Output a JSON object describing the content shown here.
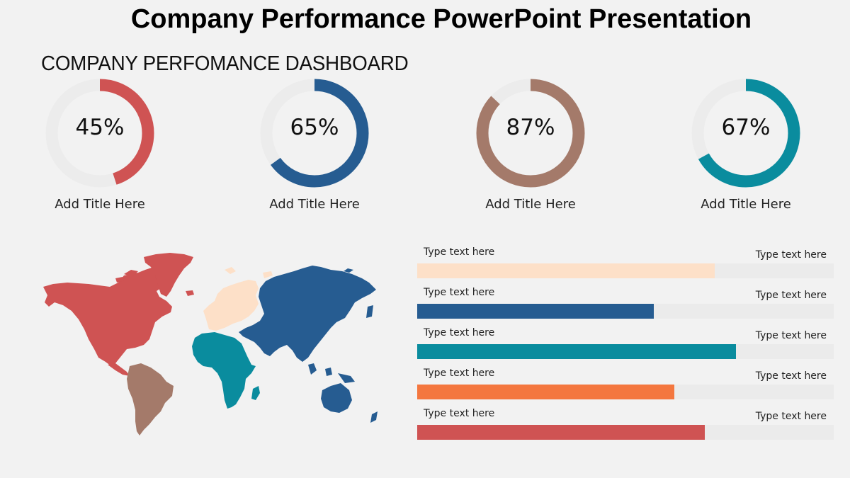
{
  "slide": {
    "title": "Company Performance PowerPoint Presentation",
    "subtitle": "COMPANY PERFOMANCE DASHBOARD",
    "background": "#f2f2f2"
  },
  "gauges": [
    {
      "value": 45,
      "label": "45%",
      "caption": "Add Title Here",
      "color": "#cf5353",
      "track": "#ececec"
    },
    {
      "value": 65,
      "label": "65%",
      "caption": "Add Title Here",
      "color": "#265c91",
      "track": "#ececec"
    },
    {
      "value": 87,
      "label": "87%",
      "caption": "Add Title Here",
      "color": "#a47a6a",
      "track": "#ececec"
    },
    {
      "value": 67,
      "label": "67%",
      "caption": "Add Title Here",
      "color": "#0a8c9e",
      "track": "#ececec"
    }
  ],
  "map": {
    "regions": [
      {
        "name": "North America",
        "color": "#cf5353"
      },
      {
        "name": "South America",
        "color": "#a47a6a"
      },
      {
        "name": "Europe",
        "color": "#fde0c8"
      },
      {
        "name": "Africa",
        "color": "#0a8c9e"
      },
      {
        "name": "Asia & Oceania",
        "color": "#265c91"
      }
    ]
  },
  "bars": [
    {
      "left_label": "Type text here",
      "right_label": "Type text here",
      "percent": 71.5,
      "color": "#fde0c8"
    },
    {
      "left_label": "Type text here",
      "right_label": "Type text here",
      "percent": 56.8,
      "color": "#265c91"
    },
    {
      "left_label": "Type text here",
      "right_label": "Type text here",
      "percent": 76.5,
      "color": "#0a8c9e"
    },
    {
      "left_label": "Type text here",
      "right_label": "Type text here",
      "percent": 61.7,
      "color": "#f4773f"
    },
    {
      "left_label": "Type text here",
      "right_label": "Type text here",
      "percent": 69.0,
      "color": "#cf5353"
    }
  ],
  "bar_track_color": "#ebebeb"
}
